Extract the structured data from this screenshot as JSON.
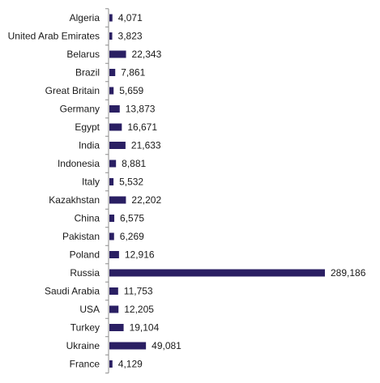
{
  "chart_data": {
    "type": "bar",
    "orientation": "horizontal",
    "title": "",
    "xlabel": "",
    "ylabel": "",
    "grid": false,
    "legend": "none",
    "bar_color": "#2a1f63",
    "categories": [
      "Algeria",
      "United Arab Emirates",
      "Belarus",
      "Brazil",
      "Great Britain",
      "Germany",
      "Egypt",
      "India",
      "Indonesia",
      "Italy",
      "Kazakhstan",
      "China",
      "Pakistan",
      "Poland",
      "Russia",
      "Saudi Arabia",
      "USA",
      "Turkey",
      "Ukraine",
      "France"
    ],
    "values": [
      4071,
      3823,
      22343,
      7861,
      5659,
      13873,
      16671,
      21633,
      8881,
      5532,
      22202,
      6575,
      6269,
      12916,
      289186,
      11753,
      12205,
      19104,
      49081,
      4129
    ],
    "value_labels": [
      "4,071",
      "3,823",
      "22,343",
      "7,861",
      "5,659",
      "13,873",
      "16,671",
      "21,633",
      "8,881",
      "5,532",
      "22,202",
      "6,575",
      "6,269",
      "12,916",
      "289,186",
      "11,753",
      "12,205",
      "19,104",
      "49,081",
      "4,129"
    ],
    "xlim": [
      0,
      289186
    ]
  }
}
